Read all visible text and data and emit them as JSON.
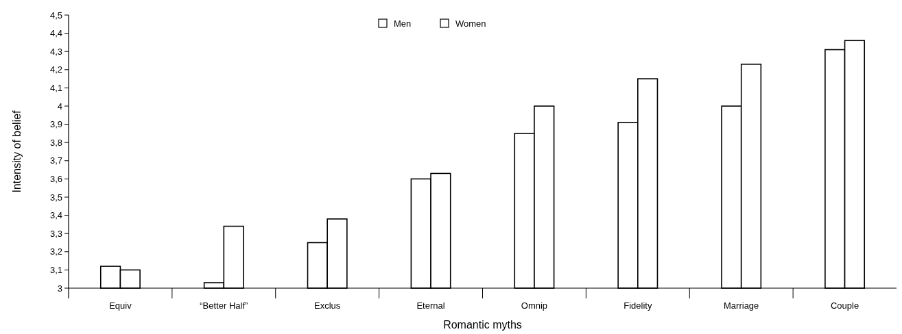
{
  "chart_data": {
    "type": "bar",
    "xlabel": "Romantic myths",
    "ylabel": "Intensity of belief",
    "categories": [
      "Equiv",
      "“Better Half”",
      "Exclus",
      "Eternal",
      "Omnip",
      "Fidelity",
      "Marriage",
      "Couple"
    ],
    "series": [
      {
        "name": "Men",
        "color": "#ffffff",
        "values": [
          3.12,
          3.03,
          3.25,
          3.6,
          3.85,
          3.91,
          4.0,
          4.31
        ]
      },
      {
        "name": "Women",
        "color": "#ffffff",
        "values": [
          3.1,
          3.34,
          3.38,
          3.63,
          4.0,
          4.15,
          4.23,
          4.36
        ]
      }
    ],
    "ylim": [
      3,
      4.5
    ],
    "yticks": [
      3,
      {
        "value": 3.1,
        "label": "3,1"
      },
      {
        "value": 3.2,
        "label": "3,2"
      },
      {
        "value": 3.3,
        "label": "3,3"
      },
      {
        "value": 3.4,
        "label": "3,4"
      },
      {
        "value": 3.5,
        "label": "3,5"
      },
      {
        "value": 3.6,
        "label": "3,6"
      },
      {
        "value": 3.7,
        "label": "3,7"
      },
      {
        "value": 3.8,
        "label": "3,8"
      },
      {
        "value": 3.9,
        "label": "3,9"
      },
      4,
      {
        "value": 4.1,
        "label": "4,1"
      },
      {
        "value": 4.2,
        "label": "4,2"
      },
      {
        "value": 4.3,
        "label": "4,3"
      },
      {
        "value": 4.4,
        "label": "4,4"
      },
      {
        "value": 4.5,
        "label": "4,5"
      }
    ],
    "grid": false,
    "legend": "top"
  }
}
